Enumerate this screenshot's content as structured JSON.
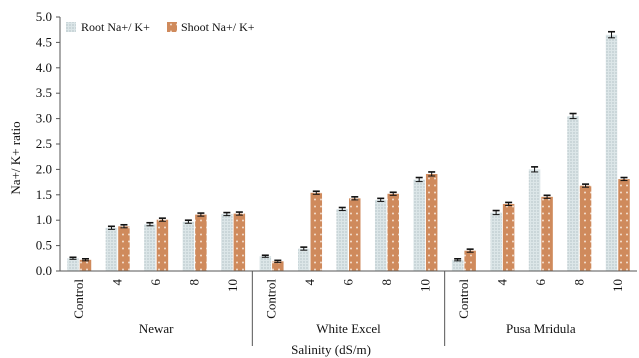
{
  "chart_data": {
    "type": "bar",
    "xlabel": "Salinity (dS/m)",
    "ylabel": "Na+/ K+ ratio",
    "ylim": [
      0,
      5.0
    ],
    "yticks": [
      "0.0",
      "0.5",
      "1.0",
      "1.5",
      "2.0",
      "2.5",
      "3.0",
      "3.5",
      "4.0",
      "4.5",
      "5.0"
    ],
    "legend_position": "top-left",
    "groups": [
      {
        "name": "Newar",
        "categories": [
          "Control",
          "4",
          "6",
          "8",
          "10"
        ],
        "series": [
          {
            "name": "Root Na+/ K+",
            "values": [
              0.25,
              0.85,
              0.92,
              0.97,
              1.12
            ],
            "errors": [
              0.02,
              0.03,
              0.03,
              0.03,
              0.03
            ]
          },
          {
            "name": "Shoot Na+/ K+",
            "values": [
              0.22,
              0.88,
              1.01,
              1.11,
              1.13
            ],
            "errors": [
              0.02,
              0.03,
              0.03,
              0.03,
              0.03
            ]
          }
        ]
      },
      {
        "name": "White Excel",
        "categories": [
          "Control",
          "4",
          "6",
          "8",
          "10"
        ],
        "series": [
          {
            "name": "Root Na+/ K+",
            "values": [
              0.29,
              0.44,
              1.22,
              1.4,
              1.8
            ],
            "errors": [
              0.02,
              0.03,
              0.03,
              0.03,
              0.04
            ]
          },
          {
            "name": "Shoot Na+/ K+",
            "values": [
              0.19,
              1.54,
              1.43,
              1.52,
              1.91
            ],
            "errors": [
              0.02,
              0.03,
              0.03,
              0.03,
              0.04
            ]
          }
        ]
      },
      {
        "name": "Pusa Mridula",
        "categories": [
          "Control",
          "4",
          "6",
          "8",
          "10"
        ],
        "series": [
          {
            "name": "Root Na+/ K+",
            "values": [
              0.22,
              1.15,
              2.0,
              3.05,
              4.65
            ],
            "errors": [
              0.02,
              0.04,
              0.05,
              0.05,
              0.06
            ]
          },
          {
            "name": "Shoot Na+/ K+",
            "values": [
              0.4,
              1.32,
              1.46,
              1.68,
              1.81
            ],
            "errors": [
              0.03,
              0.03,
              0.03,
              0.03,
              0.03
            ]
          }
        ]
      }
    ]
  },
  "colors": {
    "root": "#dce6e8",
    "root_dots": "#9fb0b4",
    "shoot": "#cf8a5c",
    "shoot_dots": "#f3dfcf",
    "axis": "#555555"
  }
}
